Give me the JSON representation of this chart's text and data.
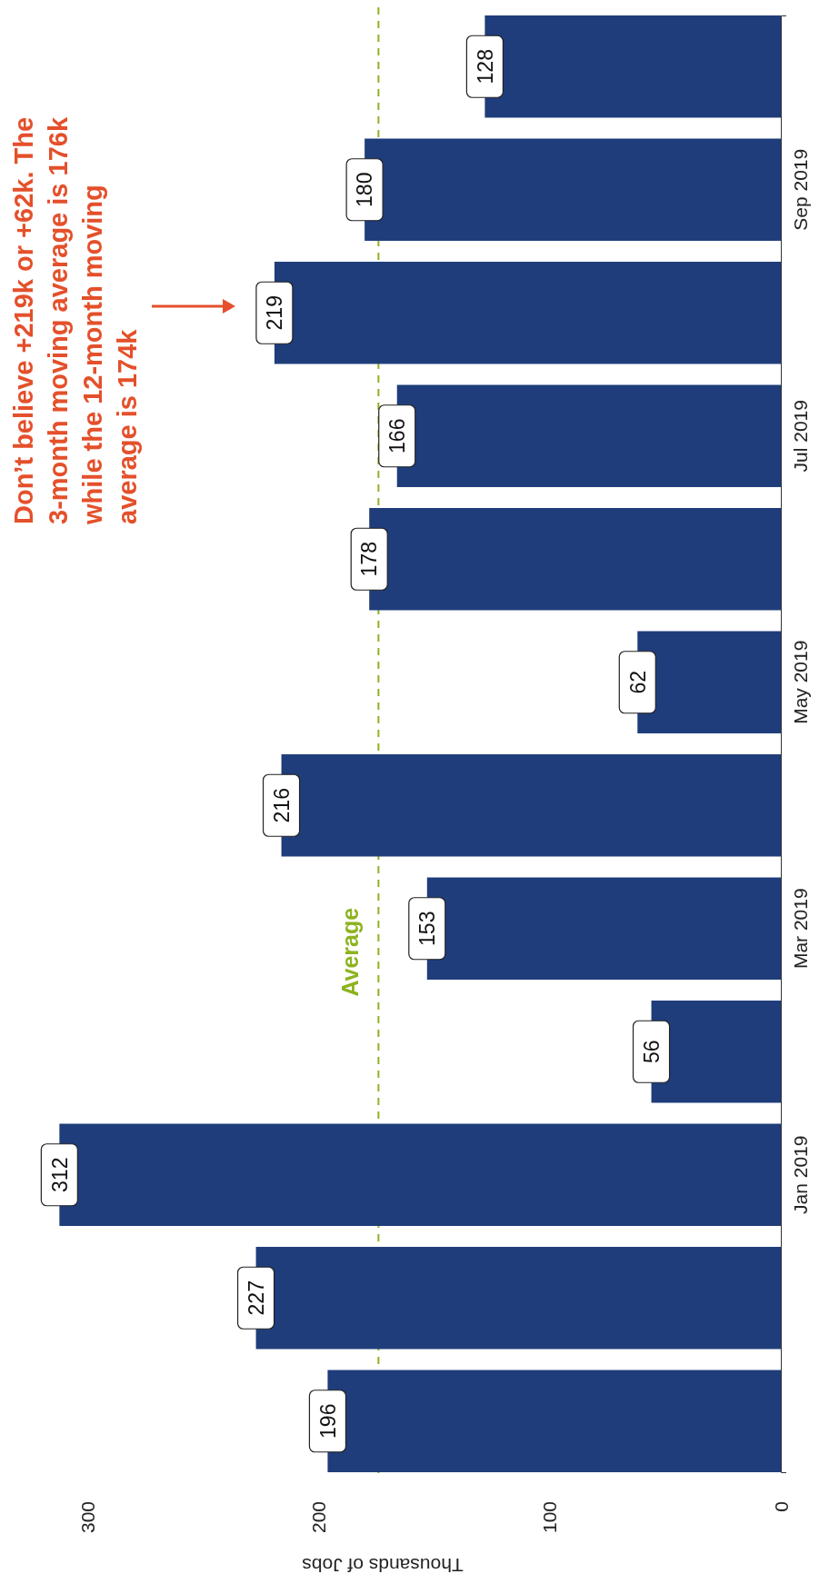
{
  "chart_data": {
    "type": "bar",
    "orientation": "horizontal",
    "xlabel": "Thousands of Jobs",
    "categories": [
      null,
      "Sep 2019",
      null,
      "Jul 2019",
      null,
      "May 2019",
      null,
      "Mar 2019",
      null,
      "Jan 2019",
      null,
      null
    ],
    "values": [
      128,
      180,
      219,
      166,
      178,
      62,
      216,
      153,
      56,
      312,
      227,
      196
    ],
    "color": "#1f3d7a",
    "xlim": [
      320,
      0
    ],
    "xticks": [
      0,
      100,
      200,
      300
    ],
    "data_labels": true,
    "ref_lines": [
      {
        "axis": "x",
        "value": 174,
        "label": "Average",
        "color": "#8db31f",
        "line_style": "dashed"
      }
    ],
    "annotations": [
      "Don’t believe +219k or +62k. The 3-month moving average is 176k while the 12-month moving average is 174k"
    ]
  }
}
